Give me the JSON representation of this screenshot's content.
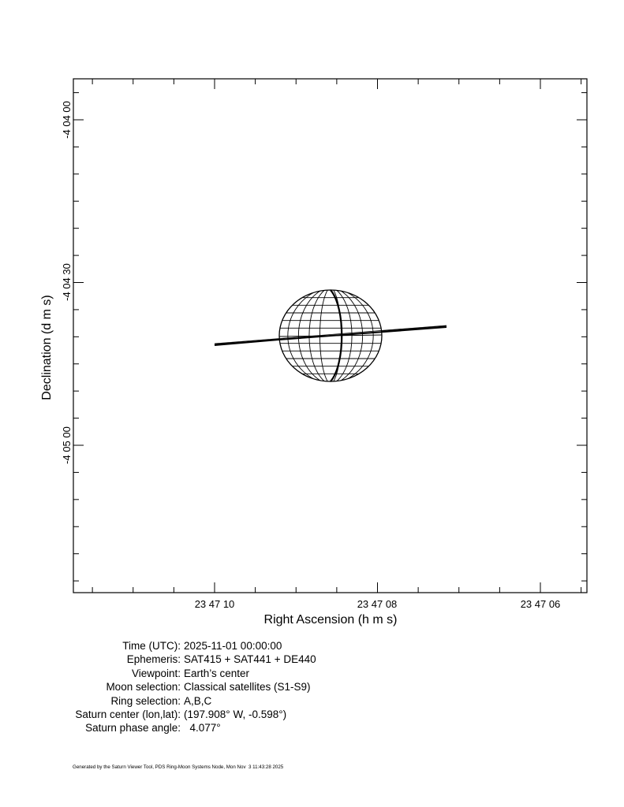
{
  "plot": {
    "xlabel": "Right Ascension (h m s)",
    "ylabel": "Declination (d m s)",
    "x_tick_labels": [
      "23 47 10",
      "23 47 08",
      "23 47 06"
    ],
    "y_tick_labels": [
      "-4 04 00",
      "-4 04 30",
      "-4 05 00"
    ]
  },
  "info": {
    "rows": [
      {
        "label": "Time (UTC):",
        "value": "2025-11-01 00:00:00"
      },
      {
        "label": "Ephemeris:",
        "value": "SAT415 + SAT441 + DE440"
      },
      {
        "label": "Viewpoint:",
        "value": "Earth’s center"
      },
      {
        "label": "Moon selection:",
        "value": "Classical satellites (S1-S9)"
      },
      {
        "label": "Ring selection:",
        "value": "A,B,C"
      },
      {
        "label": "Saturn center (lon,lat):",
        "value": "(197.908° W, -0.598°)"
      },
      {
        "label": "Saturn phase angle:",
        "value": "  4.077°"
      }
    ]
  },
  "footer": "Generated by the Saturn Viewer Tool, PDS Ring-Moon Systems Node, Mon Nov  3 11:43:28 2025"
}
